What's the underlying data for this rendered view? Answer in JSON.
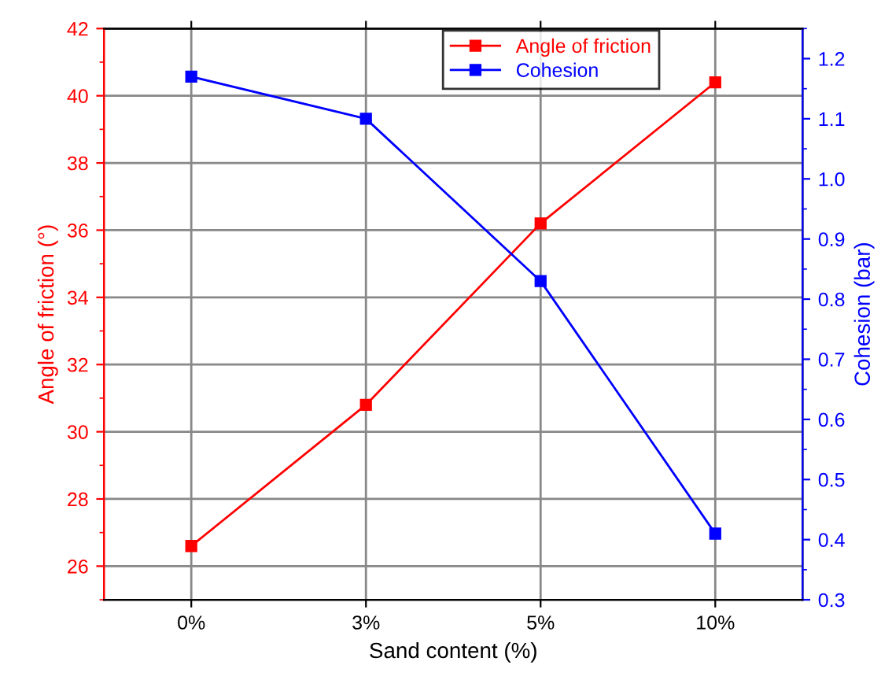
{
  "chart_data": {
    "type": "line",
    "xlabel": "Sand content (%)",
    "ylabel": "Angle of friction (°)",
    "y2label": "Cohesion (bar)",
    "categories": [
      "0%",
      "3%",
      "5%",
      "10%"
    ],
    "series": [
      {
        "name": "Angle of friction",
        "color": "#ff0000",
        "values": [
          26.6,
          30.8,
          36.2,
          40.4
        ]
      },
      {
        "name": "Cohesion",
        "color": "#0000ff",
        "values": [
          1.17,
          1.1,
          0.83,
          0.41
        ],
        "axis": "y2"
      }
    ],
    "ylim": [
      25,
      42
    ],
    "yticks": [
      26,
      28,
      30,
      32,
      34,
      36,
      38,
      40,
      42
    ],
    "y2lim": [
      0.3,
      1.25
    ],
    "y2ticks": [
      0.3,
      0.4,
      0.5,
      0.6,
      0.7,
      0.8,
      0.9,
      {
        "value": 1.0,
        "label": "1.0"
      },
      1.1,
      1.2
    ],
    "grid": true,
    "legend": "top",
    "marker": "square",
    "line_style": "solid"
  }
}
